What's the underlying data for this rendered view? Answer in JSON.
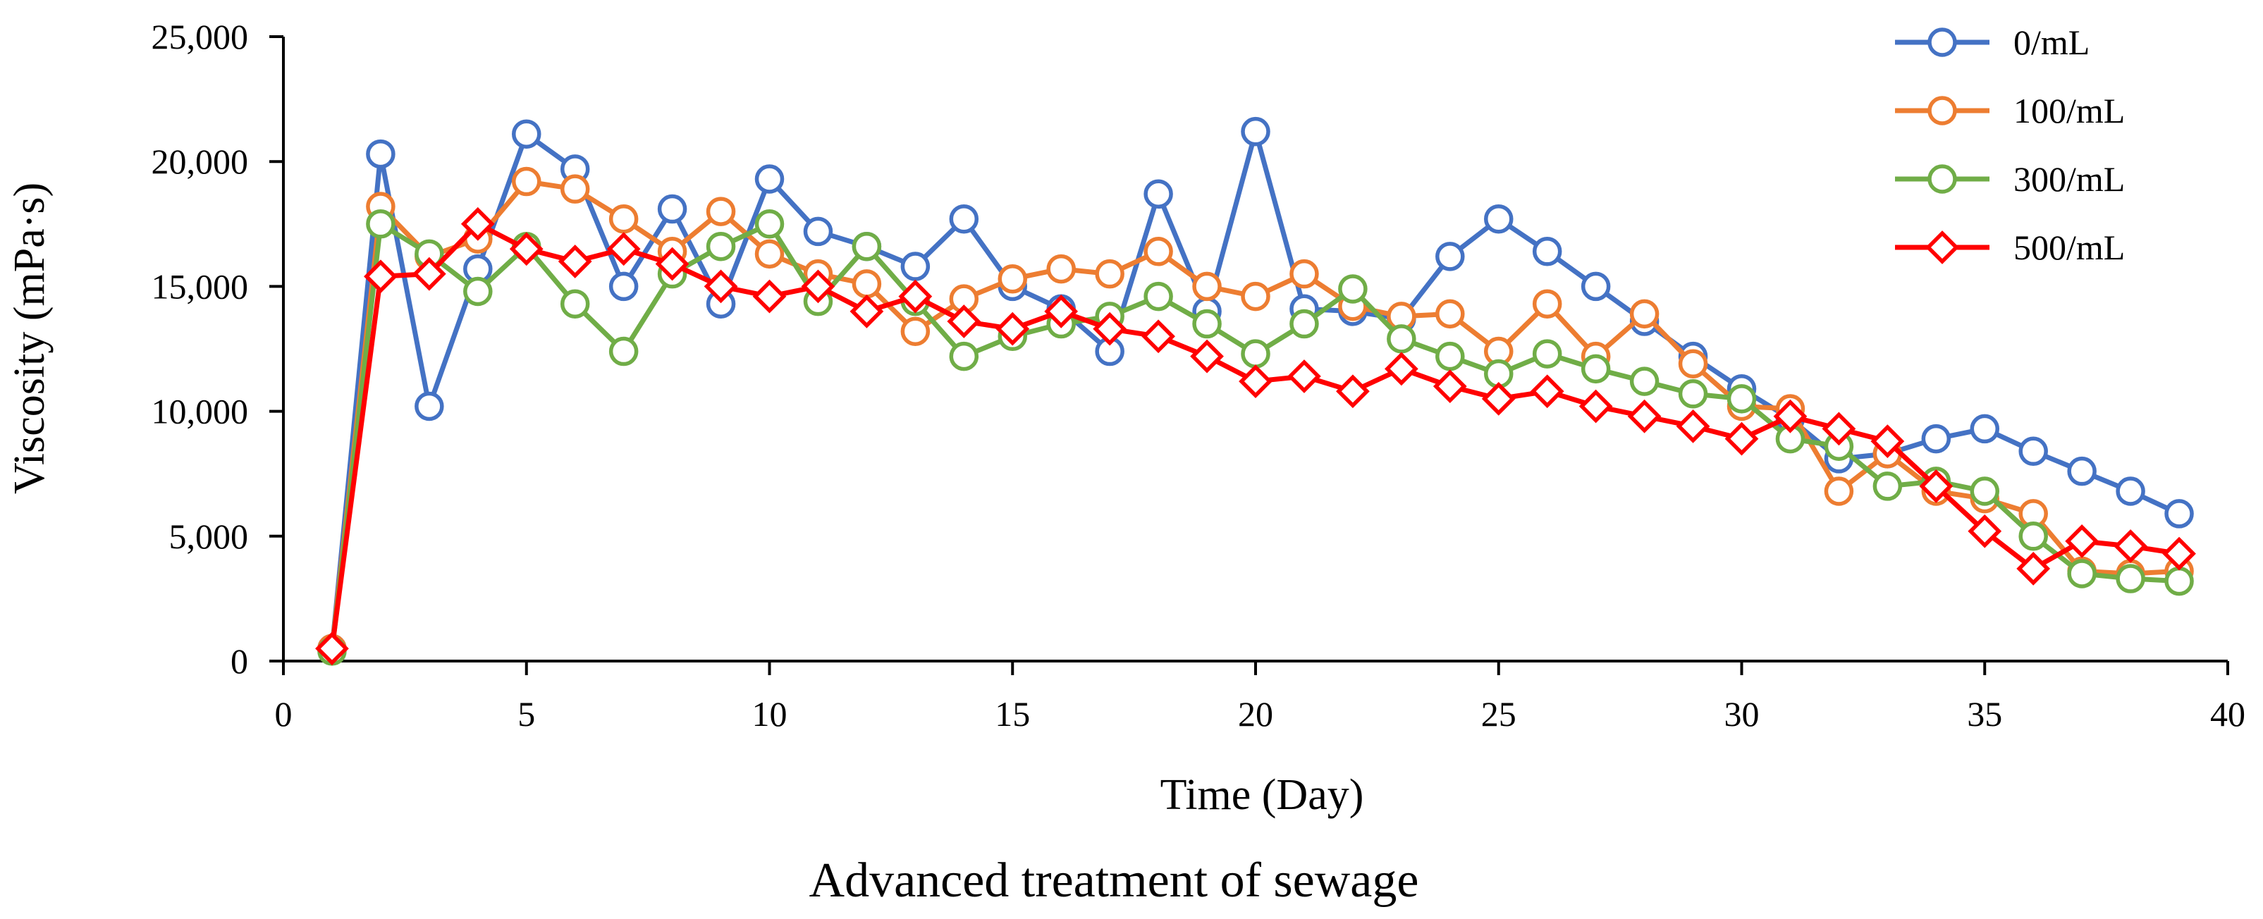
{
  "chart_data": {
    "type": "line",
    "caption": "Advanced treatment of sewage",
    "xlabel": "Time (Day)",
    "ylabel": "Viscosity (mPa·s)",
    "xlim": [
      0,
      40
    ],
    "ylim": [
      0,
      25000
    ],
    "x_ticks": [
      "0",
      "5",
      "10",
      "15",
      "20",
      "25",
      "30",
      "35",
      "40"
    ],
    "y_ticks": [
      "0",
      "5,000",
      "10,000",
      "15,000",
      "20,000",
      "25,000"
    ],
    "grid": false,
    "legend_position": "top-right",
    "x": [
      1,
      2,
      3,
      4,
      5,
      6,
      7,
      8,
      9,
      10,
      11,
      12,
      13,
      14,
      15,
      16,
      17,
      18,
      19,
      20,
      21,
      22,
      23,
      24,
      25,
      26,
      27,
      28,
      29,
      30,
      31,
      32,
      33,
      34,
      35,
      36,
      37,
      38,
      39
    ],
    "series": [
      {
        "name": "0/mL",
        "color": "#4472C4",
        "marker": "circle",
        "values": [
          500,
          20300,
          10200,
          15700,
          21100,
          19700,
          15000,
          18100,
          14300,
          19300,
          17200,
          16600,
          15800,
          17700,
          15000,
          14100,
          12400,
          18700,
          14000,
          21200,
          14100,
          14000,
          13700,
          16200,
          17700,
          16400,
          15000,
          13600,
          12200,
          10900,
          9700,
          8100,
          8300,
          8900,
          9300,
          8400,
          7600,
          6800,
          5900
        ]
      },
      {
        "name": "100/mL",
        "color": "#ED7D31",
        "marker": "circle",
        "values": [
          500,
          18200,
          16200,
          16900,
          19200,
          18900,
          17700,
          16400,
          18000,
          16300,
          15500,
          15100,
          13200,
          14500,
          15300,
          15700,
          15500,
          16400,
          15000,
          14600,
          15500,
          14200,
          13800,
          13900,
          12400,
          14300,
          12200,
          13900,
          11900,
          10200,
          10100,
          6800,
          8300,
          6800,
          6500,
          5900,
          3600,
          3500,
          3600
        ]
      },
      {
        "name": "300/mL",
        "color": "#70AD47",
        "marker": "circle",
        "values": [
          400,
          17500,
          16300,
          14800,
          16600,
          14300,
          12400,
          15500,
          16600,
          17500,
          14400,
          16600,
          14400,
          12200,
          13000,
          13500,
          13800,
          14600,
          13500,
          12300,
          13500,
          14900,
          12900,
          12200,
          11500,
          12300,
          11700,
          11200,
          10700,
          10500,
          8900,
          8600,
          7000,
          7200,
          6800,
          5000,
          3500,
          3300,
          3200
        ]
      },
      {
        "name": "500/mL",
        "color": "#FF0000",
        "marker": "diamond",
        "values": [
          500,
          15400,
          15500,
          17500,
          16500,
          16000,
          16500,
          15900,
          15000,
          14600,
          15000,
          14000,
          14600,
          13600,
          13300,
          14000,
          13300,
          13000,
          12200,
          11200,
          11400,
          10800,
          11700,
          11000,
          10500,
          10800,
          10200,
          9800,
          9400,
          8900,
          9800,
          9300,
          8800,
          7000,
          5200,
          3700,
          4800,
          4600,
          4300
        ]
      }
    ]
  }
}
